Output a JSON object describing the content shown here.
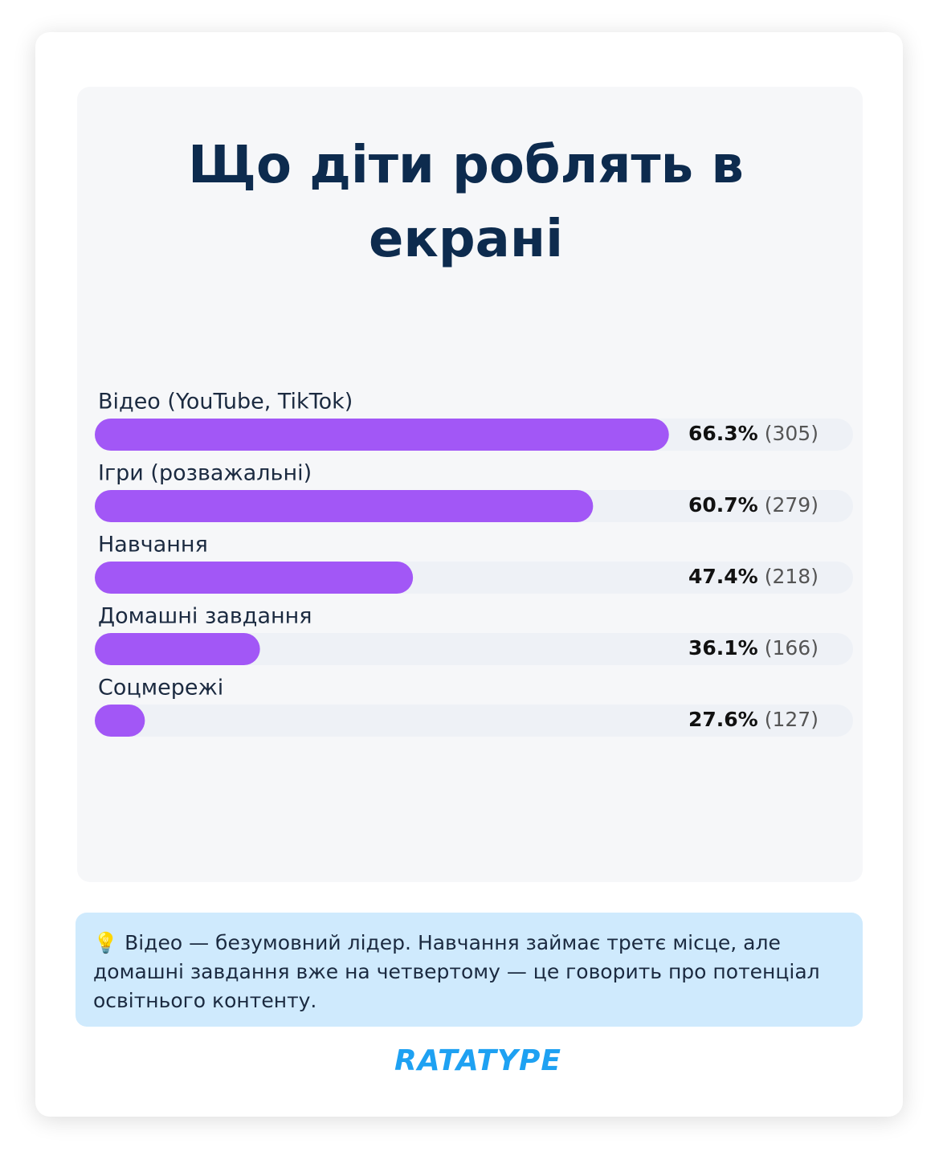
{
  "chart_data": {
    "type": "bar",
    "orientation": "horizontal",
    "title": "Що діти роблять в екрані",
    "categories": [
      "Відео (YouTube, TikTok)",
      "Ігри (розважальні)",
      "Навчання",
      "Домашні завдання",
      "Соцмережі"
    ],
    "values": [
      66.3,
      60.7,
      47.4,
      36.1,
      27.6
    ],
    "value_labels": [
      "66.3%",
      "60.7%",
      "47.4%",
      "36.1%",
      "27.6%"
    ],
    "counts": [
      305,
      279,
      218,
      166,
      127
    ],
    "count_labels": [
      "(305)",
      "(279)",
      "(218)",
      "(166)",
      "(127)"
    ],
    "color": "#a257f6",
    "xlim": [
      23.9,
      79.9
    ]
  },
  "note": "💡 Відео — безумовний лідер. Навчання займає третє місце, але домашні завдання вже на четвертому — це говорить про потенціал освітнього контенту.",
  "brand": "RATATYPE"
}
